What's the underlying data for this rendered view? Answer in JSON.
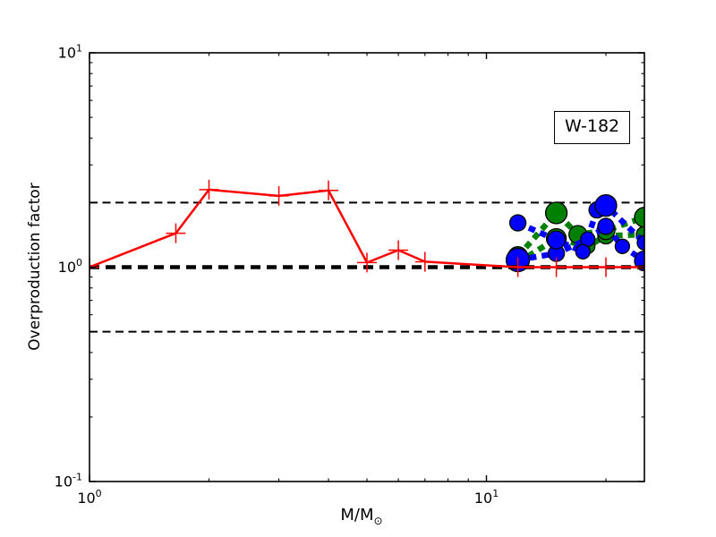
{
  "chart_data": {
    "type": "line",
    "scale": "log-log",
    "title": "",
    "xlabel": "M/M",
    "xlabel_subscript": "⊙",
    "ylabel": "Overproduction factor",
    "xlim": [
      1,
      25
    ],
    "ylim": [
      0.1,
      10
    ],
    "grid": false,
    "annotation": {
      "text": "W-182"
    },
    "x_ticks": {
      "major": [
        {
          "value": 1,
          "mantissa": "10",
          "exponent": "0"
        },
        {
          "value": 10,
          "mantissa": "10",
          "exponent": "1"
        }
      ],
      "minor": [
        2,
        3,
        4,
        5,
        6,
        7,
        8,
        9,
        20
      ]
    },
    "y_ticks": {
      "major": [
        {
          "value": 0.1,
          "mantissa": "10",
          "exponent": "-1"
        },
        {
          "value": 1,
          "mantissa": "10",
          "exponent": "0"
        },
        {
          "value": 10,
          "mantissa": "10",
          "exponent": "1"
        }
      ],
      "minor": [
        0.2,
        0.3,
        0.4,
        0.5,
        0.6,
        0.7,
        0.8,
        0.9,
        2,
        3,
        4,
        5,
        6,
        7,
        8,
        9
      ]
    },
    "reference_lines": [
      {
        "y": 0.5,
        "weight": "thin",
        "color": "#000000"
      },
      {
        "y": 2.0,
        "weight": "thin",
        "color": "#000000"
      },
      {
        "y": 1.0,
        "weight": "thick",
        "color": "#000000"
      }
    ],
    "series": [
      {
        "name": "green-dashed-lower",
        "color": "#008000",
        "line": "dashed",
        "marker": "circle",
        "points": [
          [
            12,
            1.05
          ],
          [
            15,
            1.36
          ],
          [
            18,
            1.25
          ],
          [
            20,
            1.4
          ],
          [
            25,
            1.42
          ]
        ],
        "marker_sizes": [
          10,
          11,
          8,
          9,
          9
        ]
      },
      {
        "name": "green-dashed-upper",
        "color": "#008000",
        "line": "dashed",
        "marker": "circle",
        "points": [
          [
            12,
            1.12
          ],
          [
            15,
            1.79
          ],
          [
            17,
            1.42
          ],
          [
            20,
            1.48
          ],
          [
            25,
            1.71
          ]
        ],
        "marker_sizes": [
          11,
          12,
          10,
          10,
          11
        ]
      },
      {
        "name": "blue-dashed-lower",
        "color": "#0000ff",
        "line": "dashed",
        "marker": "circle",
        "points": [
          [
            12,
            1.08
          ],
          [
            15,
            1.16
          ],
          [
            18,
            1.35
          ],
          [
            20,
            1.55
          ],
          [
            22,
            1.25
          ],
          [
            25,
            1.07
          ]
        ],
        "marker_sizes": [
          13,
          9,
          8,
          9,
          8,
          11
        ]
      },
      {
        "name": "blue-dashed-upper",
        "color": "#0000ff",
        "line": "dashed",
        "marker": "circle",
        "points": [
          [
            12,
            1.61
          ],
          [
            15,
            1.34
          ],
          [
            17.5,
            1.18
          ],
          [
            19,
            1.85
          ],
          [
            20,
            1.94
          ],
          [
            25,
            1.3
          ]
        ],
        "marker_sizes": [
          9,
          10,
          8,
          9,
          12,
          8
        ]
      },
      {
        "name": "red-solid-plus",
        "color": "#ff0000",
        "line": "solid",
        "marker": "plus",
        "points": [
          [
            1,
            1.0
          ],
          [
            1.65,
            1.44
          ],
          [
            2,
            2.3
          ],
          [
            3,
            2.15
          ],
          [
            4,
            2.28
          ],
          [
            5,
            1.05
          ],
          [
            6,
            1.2
          ],
          [
            7,
            1.06
          ],
          [
            12,
            1.0
          ],
          [
            15,
            1.0
          ],
          [
            20,
            1.0
          ],
          [
            25,
            1.0
          ]
        ]
      }
    ]
  }
}
